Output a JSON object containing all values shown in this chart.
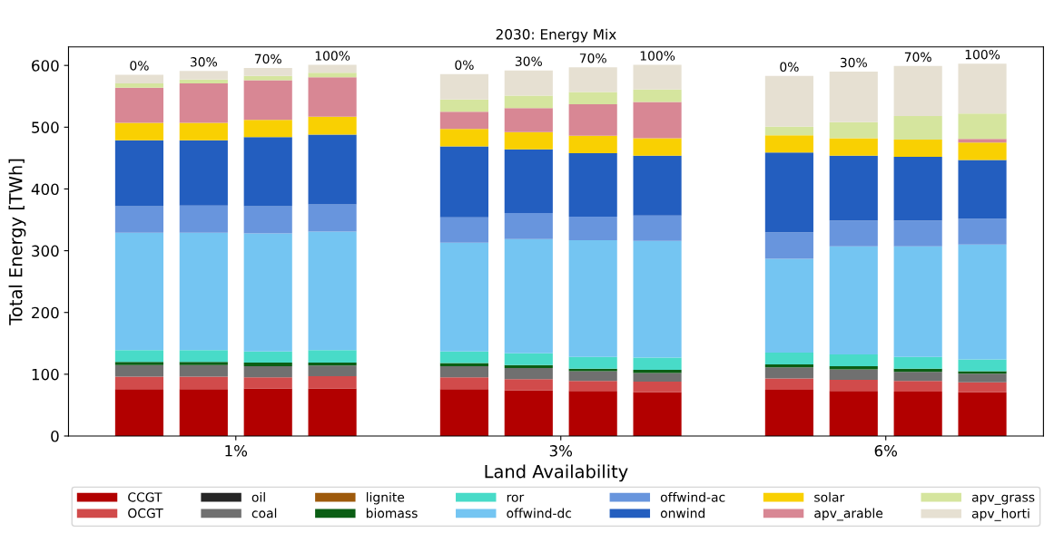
{
  "chart_data": {
    "type": "bar",
    "stacked": true,
    "title": "2030: Energy Mix",
    "xlabel": "Land Availability",
    "ylabel": "Total Energy [TWh]",
    "categories": [
      "0%",
      "30%",
      "70%",
      "100%",
      "0%",
      "30%",
      "70%",
      "100%",
      "0%",
      "30%",
      "70%",
      "100%"
    ],
    "annotations": [
      "1%",
      "3%",
      "6%"
    ],
    "ylim": [
      0,
      630
    ],
    "yticks": [
      0,
      100,
      200,
      300,
      400,
      500,
      600
    ],
    "grid": false,
    "legend": "bottom",
    "series": [
      {
        "name": "CCGT",
        "color": "#b20000",
        "values": [
          76,
          76,
          77,
          77,
          76,
          74,
          73,
          71,
          75,
          73,
          72,
          71
        ]
      },
      {
        "name": "OCGT",
        "color": "#d14b4b",
        "values": [
          20,
          20,
          18,
          20,
          19,
          18,
          16,
          17,
          18,
          18,
          17,
          16
        ]
      },
      {
        "name": "oil",
        "color": "#262626",
        "values": [
          0,
          0,
          0,
          0,
          0,
          0,
          0,
          0,
          0,
          0,
          0,
          0
        ]
      },
      {
        "name": "coal",
        "color": "#707070",
        "values": [
          19,
          19,
          18,
          17,
          18,
          18,
          16,
          14,
          18,
          17,
          15,
          14
        ]
      },
      {
        "name": "lignite",
        "color": "#9e5a0c",
        "values": [
          0,
          0,
          0,
          0,
          0,
          0,
          0,
          0,
          0,
          0,
          0,
          0
        ]
      },
      {
        "name": "biomass",
        "color": "#0b5e14",
        "values": [
          5,
          5,
          6,
          5,
          5,
          5,
          4,
          5,
          5,
          5,
          5,
          4
        ]
      },
      {
        "name": "ror",
        "color": "#48dbc8",
        "values": [
          19,
          19,
          18,
          20,
          19,
          19,
          19,
          20,
          19,
          19,
          19,
          19
        ]
      },
      {
        "name": "offwind-dc",
        "color": "#74c5f2",
        "values": [
          190,
          190,
          191,
          192,
          176,
          185,
          189,
          189,
          152,
          175,
          179,
          186
        ]
      },
      {
        "name": "offwind-ac",
        "color": "#6895dd",
        "values": [
          43,
          44,
          44,
          44,
          41,
          42,
          38,
          41,
          43,
          42,
          42,
          42
        ]
      },
      {
        "name": "onwind",
        "color": "#235ebf",
        "values": [
          107,
          106,
          112,
          113,
          115,
          103,
          103,
          97,
          129,
          105,
          103,
          95
        ]
      },
      {
        "name": "solar",
        "color": "#f9d002",
        "values": [
          28,
          28,
          28,
          29,
          28,
          28,
          28,
          28,
          28,
          28,
          28,
          28
        ]
      },
      {
        "name": "apv_arable",
        "color": "#d88794",
        "values": [
          57,
          64,
          64,
          64,
          28,
          39,
          51,
          59,
          0,
          0,
          0,
          6
        ]
      },
      {
        "name": "apv_grass",
        "color": "#d5e59e",
        "values": [
          7,
          6,
          7,
          7,
          20,
          20,
          20,
          20,
          14,
          26,
          38,
          41
        ]
      },
      {
        "name": "apv_horti",
        "color": "#e6e0d2",
        "values": [
          14,
          14,
          13,
          13,
          41,
          41,
          40,
          40,
          82,
          82,
          81,
          81
        ]
      }
    ]
  }
}
